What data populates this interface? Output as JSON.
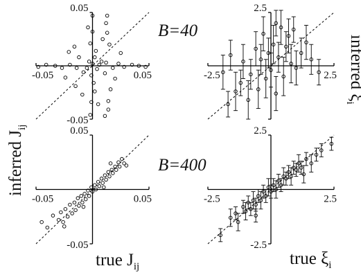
{
  "labels": {
    "y_left": "inferred J",
    "y_left_sub": "ij",
    "x_left": "true J",
    "x_left_sub": "ij",
    "y_right": "inferred ξ",
    "y_right_sub": "i",
    "x_right": "true ξ",
    "x_right_sub": "i",
    "b_top": "B=40",
    "b_bottom": "B=400"
  },
  "chart_data": [
    {
      "type": "scatter",
      "panel": "top-left",
      "xlim": [
        -0.05,
        0.05
      ],
      "ylim": [
        -0.05,
        0.05
      ],
      "x_ticks": [
        "-0.05",
        "0.05"
      ],
      "y_ticks": [
        "0.05",
        "-0.05"
      ],
      "diagonal": true,
      "annotation": "B=40",
      "points": [
        [
          0.0,
          0.002
        ],
        [
          0.004,
          -0.003
        ],
        [
          -0.003,
          0.004
        ],
        [
          0.006,
          0.001
        ],
        [
          -0.005,
          -0.002
        ],
        [
          0.002,
          0.008
        ],
        [
          -0.001,
          -0.009
        ],
        [
          0.008,
          0.004
        ],
        [
          -0.008,
          -0.006
        ],
        [
          0.003,
          0.014
        ],
        [
          0.001,
          -0.016
        ],
        [
          -0.002,
          0.021
        ],
        [
          0.002,
          -0.024
        ],
        [
          0.0,
          0.032
        ],
        [
          -0.001,
          -0.034
        ],
        [
          0.012,
          0.04
        ],
        [
          0.014,
          -0.041
        ],
        [
          0.0,
          0.047
        ],
        [
          0.013,
          0.047
        ],
        [
          -0.002,
          -0.046
        ],
        [
          0.011,
          -0.047
        ],
        [
          0.015,
          0.02
        ],
        [
          0.016,
          -0.022
        ],
        [
          -0.016,
          0.018
        ],
        [
          -0.015,
          -0.019
        ],
        [
          0.012,
          0.003
        ],
        [
          0.018,
          -0.002
        ],
        [
          0.023,
          0.002
        ],
        [
          0.028,
          -0.001
        ],
        [
          0.035,
          0.001
        ],
        [
          0.041,
          0.0
        ],
        [
          -0.014,
          -0.002
        ],
        [
          -0.02,
          0.001
        ],
        [
          -0.027,
          -0.002
        ],
        [
          -0.033,
          0.0
        ],
        [
          -0.041,
          0.001
        ],
        [
          -0.048,
          -0.001
        ],
        [
          0.047,
          -0.001
        ],
        [
          0.025,
          0.012
        ],
        [
          -0.024,
          -0.011
        ],
        [
          0.02,
          -0.012
        ],
        [
          -0.021,
          0.013
        ],
        [
          0.009,
          0.025
        ],
        [
          -0.009,
          -0.027
        ],
        [
          0.005,
          -0.036
        ],
        [
          -0.004,
          0.036
        ],
        [
          0.013,
          0.031
        ],
        [
          0.014,
          -0.033
        ],
        [
          -0.012,
          0.008
        ],
        [
          0.011,
          -0.007
        ]
      ]
    },
    {
      "type": "scatter",
      "panel": "top-right",
      "xlim": [
        -2.5,
        2.5
      ],
      "ylim": [
        -2.5,
        2.5
      ],
      "x_ticks": [
        "-2.5",
        "2.5"
      ],
      "y_ticks": [
        "2.5"
      ],
      "diagonal": true,
      "error_bars": true,
      "points": [
        [
          -1.9,
          -0.3,
          0.8
        ],
        [
          -1.6,
          0.5,
          0.7
        ],
        [
          -1.4,
          -1.2,
          0.9
        ],
        [
          -1.2,
          -0.8,
          0.6
        ],
        [
          -1.1,
          0.2,
          0.8
        ],
        [
          -0.9,
          -1.6,
          0.9
        ],
        [
          -0.8,
          -0.4,
          0.7
        ],
        [
          -0.6,
          0.8,
          0.8
        ],
        [
          -0.5,
          -1.1,
          0.9
        ],
        [
          -0.4,
          0.3,
          0.7
        ],
        [
          -0.3,
          1.5,
          0.8
        ],
        [
          -0.2,
          -0.6,
          0.9
        ],
        [
          -0.1,
          0.6,
          0.7
        ],
        [
          0.0,
          -0.2,
          0.8
        ],
        [
          0.1,
          1.0,
          0.9
        ],
        [
          0.2,
          -1.3,
          0.8
        ],
        [
          0.3,
          0.4,
          0.7
        ],
        [
          0.4,
          1.8,
          0.8
        ],
        [
          0.5,
          -0.5,
          0.9
        ],
        [
          0.6,
          0.9,
          0.7
        ],
        [
          0.7,
          1.4,
          0.8
        ],
        [
          0.8,
          0.1,
          0.9
        ],
        [
          0.9,
          1.7,
          0.6
        ],
        [
          1.0,
          -0.1,
          0.8
        ],
        [
          1.2,
          0.6,
          0.7
        ],
        [
          1.4,
          1.1,
          0.8
        ],
        [
          1.6,
          0.3,
          0.7
        ],
        [
          1.9,
          -0.3,
          0.6
        ],
        [
          -1.7,
          -1.8,
          0.6
        ],
        [
          0.2,
          2.0,
          0.6
        ]
      ]
    },
    {
      "type": "scatter",
      "panel": "bottom-left",
      "xlim": [
        -0.05,
        0.05
      ],
      "ylim": [
        -0.05,
        0.05
      ],
      "x_ticks": [
        "-0.05",
        "0.05"
      ],
      "y_ticks": [
        "0.05",
        "-0.05"
      ],
      "diagonal": true,
      "annotation": "B=400",
      "points": [
        [
          -0.03,
          -0.028
        ],
        [
          -0.028,
          -0.021
        ],
        [
          -0.026,
          -0.03
        ],
        [
          -0.024,
          -0.018
        ],
        [
          -0.022,
          -0.025
        ],
        [
          -0.02,
          -0.014
        ],
        [
          -0.018,
          -0.022
        ],
        [
          -0.016,
          -0.012
        ],
        [
          -0.015,
          -0.019
        ],
        [
          -0.013,
          -0.008
        ],
        [
          -0.012,
          -0.015
        ],
        [
          -0.01,
          -0.006
        ],
        [
          -0.009,
          -0.012
        ],
        [
          -0.007,
          -0.004
        ],
        [
          -0.006,
          -0.009
        ],
        [
          -0.004,
          -0.001
        ],
        [
          -0.003,
          -0.006
        ],
        [
          -0.001,
          0.002
        ],
        [
          0.0,
          -0.002
        ],
        [
          0.002,
          0.004
        ],
        [
          0.003,
          0.0
        ],
        [
          0.005,
          0.007
        ],
        [
          0.006,
          0.003
        ],
        [
          0.008,
          0.01
        ],
        [
          0.009,
          0.006
        ],
        [
          0.011,
          0.013
        ],
        [
          0.012,
          0.009
        ],
        [
          0.014,
          0.016
        ],
        [
          0.015,
          0.012
        ],
        [
          0.017,
          0.018
        ],
        [
          0.018,
          0.015
        ],
        [
          0.02,
          0.021
        ],
        [
          0.021,
          0.018
        ],
        [
          0.023,
          0.025
        ],
        [
          0.024,
          0.021
        ],
        [
          0.026,
          0.028
        ],
        [
          0.028,
          0.024
        ],
        [
          -0.04,
          -0.035
        ],
        [
          -0.045,
          -0.03
        ],
        [
          0.03,
          0.022
        ],
        [
          -0.035,
          -0.024
        ],
        [
          -0.025,
          -0.034
        ],
        [
          0.01,
          0.002
        ],
        [
          -0.008,
          -0.016
        ],
        [
          0.016,
          0.024
        ]
      ]
    },
    {
      "type": "scatter",
      "panel": "bottom-right",
      "xlim": [
        -2.5,
        2.5
      ],
      "ylim": [
        -2.5,
        2.5
      ],
      "x_ticks": [
        "-2.5",
        "2.5"
      ],
      "y_ticks": [
        "2.5",
        "-2.5"
      ],
      "diagonal": true,
      "error_bars": true,
      "points": [
        [
          -2.0,
          -2.1,
          0.3
        ],
        [
          -1.6,
          -1.3,
          0.4
        ],
        [
          -1.4,
          -1.1,
          0.3
        ],
        [
          -1.3,
          -1.5,
          0.4
        ],
        [
          -1.1,
          -0.8,
          0.3
        ],
        [
          -1.0,
          -1.0,
          0.4
        ],
        [
          -0.9,
          -0.6,
          0.3
        ],
        [
          -0.8,
          -0.9,
          0.3
        ],
        [
          -0.7,
          -0.5,
          0.4
        ],
        [
          -0.6,
          -0.7,
          0.3
        ],
        [
          -0.5,
          -0.3,
          0.3
        ],
        [
          -0.4,
          -0.5,
          0.4
        ],
        [
          -0.3,
          -0.1,
          0.3
        ],
        [
          -0.2,
          -0.3,
          0.3
        ],
        [
          -0.1,
          0.1,
          0.4
        ],
        [
          0.0,
          -0.1,
          0.3
        ],
        [
          0.1,
          0.2,
          0.3
        ],
        [
          0.2,
          0.0,
          0.4
        ],
        [
          0.3,
          0.4,
          0.3
        ],
        [
          0.4,
          0.2,
          0.3
        ],
        [
          0.5,
          0.6,
          0.4
        ],
        [
          0.6,
          0.5,
          0.3
        ],
        [
          0.7,
          0.8,
          0.3
        ],
        [
          0.8,
          0.6,
          0.4
        ],
        [
          0.9,
          1.0,
          0.3
        ],
        [
          1.0,
          0.9,
          0.3
        ],
        [
          1.1,
          1.2,
          0.4
        ],
        [
          1.2,
          1.0,
          0.3
        ],
        [
          1.4,
          1.4,
          0.3
        ],
        [
          1.6,
          1.2,
          0.4
        ],
        [
          1.8,
          1.6,
          0.3
        ],
        [
          2.0,
          1.8,
          0.3
        ],
        [
          2.4,
          2.1,
          0.3
        ],
        [
          1.3,
          0.7,
          0.4
        ],
        [
          -0.6,
          -1.2,
          0.3
        ]
      ]
    }
  ]
}
